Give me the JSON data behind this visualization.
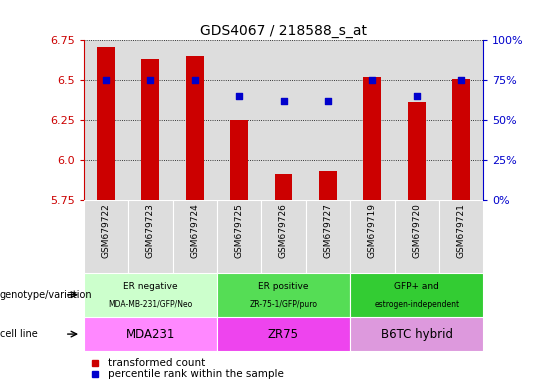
{
  "title": "GDS4067 / 218588_s_at",
  "samples": [
    "GSM679722",
    "GSM679723",
    "GSM679724",
    "GSM679725",
    "GSM679726",
    "GSM679727",
    "GSM679719",
    "GSM679720",
    "GSM679721"
  ],
  "transformed_counts": [
    6.71,
    6.63,
    6.65,
    6.25,
    5.91,
    5.93,
    6.52,
    6.36,
    6.51
  ],
  "percentile_ranks": [
    75,
    75,
    75,
    65,
    62,
    62,
    75,
    65,
    75
  ],
  "ylim": [
    5.75,
    6.75
  ],
  "yticks": [
    5.75,
    6.0,
    6.25,
    6.5,
    6.75
  ],
  "right_ylim": [
    0,
    100
  ],
  "right_yticks": [
    0,
    25,
    50,
    75,
    100
  ],
  "right_yticklabels": [
    "0%",
    "25%",
    "50%",
    "75%",
    "100%"
  ],
  "bar_color": "#cc0000",
  "dot_color": "#0000cc",
  "groups": [
    {
      "label_line1": "ER negative",
      "label_line2": "MDA-MB-231/GFP/Neo",
      "cell_line": "MDA231",
      "samples_idx": [
        0,
        1,
        2
      ],
      "geno_color": "#ccffcc",
      "cell_color": "#ff88ff"
    },
    {
      "label_line1": "ER positive",
      "label_line2": "ZR-75-1/GFP/puro",
      "cell_line": "ZR75",
      "samples_idx": [
        3,
        4,
        5
      ],
      "geno_color": "#55dd55",
      "cell_color": "#ee44ee"
    },
    {
      "label_line1": "GFP+ and",
      "label_line2": "estrogen-independent",
      "cell_line": "B6TC hybrid",
      "samples_idx": [
        6,
        7,
        8
      ],
      "geno_color": "#33cc33",
      "cell_color": "#dd99dd"
    }
  ],
  "genotype_label": "genotype/variation",
  "cell_line_label": "cell line",
  "legend_items": [
    {
      "color": "#cc0000",
      "label": "transformed count"
    },
    {
      "color": "#0000cc",
      "label": "percentile rank within the sample"
    }
  ],
  "tick_color_left": "#cc0000",
  "tick_color_right": "#0000cc",
  "bar_width": 0.4,
  "col_bg_color": "#dddddd",
  "plot_bg_color": "#ffffff",
  "spine_color": "#000000"
}
